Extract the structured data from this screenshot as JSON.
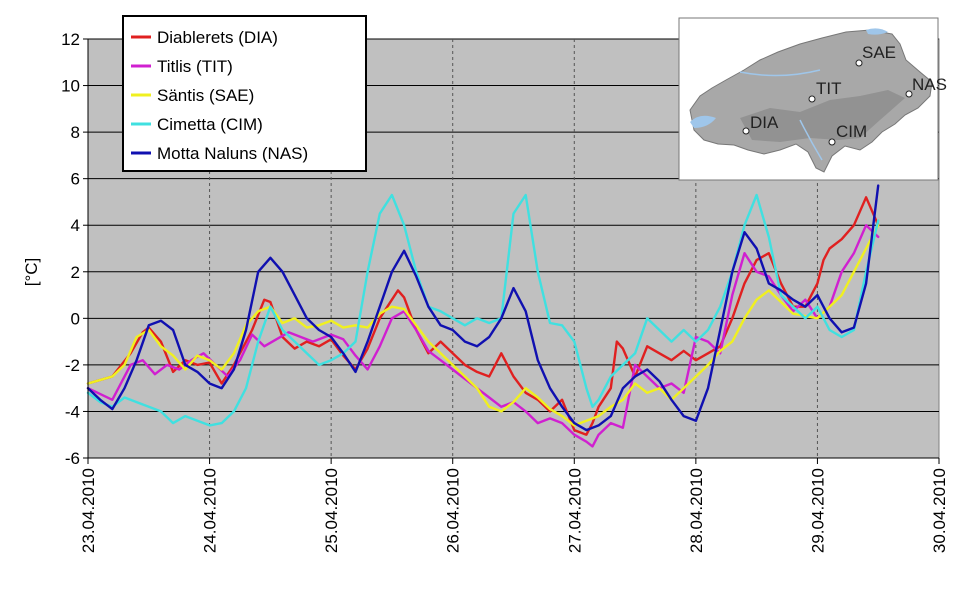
{
  "chart_data": {
    "type": "line",
    "ylabel": "[°C]",
    "xlabel": "",
    "ylim": [
      -6,
      12
    ],
    "xlim": [
      0,
      7
    ],
    "grid": true,
    "legend_placement": "top-left",
    "plot_background": "#c0c0c0",
    "y_ticks": [
      "12",
      "10",
      "8",
      "6",
      "4",
      "2",
      "0",
      "-2",
      "-4",
      "-6"
    ],
    "x_tick_labels": [
      "23.04.2010",
      "24.04.2010",
      "25.04.2010",
      "26.04.2010",
      "27.04.2010",
      "28.04.2010",
      "29.04.2010",
      "30.04.2010"
    ],
    "series": [
      {
        "name": "Diablerets (DIA)",
        "color": "#e02020",
        "x": [
          0,
          0.2,
          0.35,
          0.45,
          0.5,
          0.6,
          0.7,
          0.8,
          0.9,
          1.0,
          1.1,
          1.2,
          1.35,
          1.45,
          1.5,
          1.6,
          1.7,
          1.8,
          1.9,
          2.0,
          2.1,
          2.2,
          2.3,
          2.4,
          2.5,
          2.55,
          2.6,
          2.7,
          2.8,
          2.9,
          3.0,
          3.1,
          3.2,
          3.3,
          3.4,
          3.5,
          3.6,
          3.7,
          3.8,
          3.9,
          4.0,
          4.1,
          4.15,
          4.2,
          4.3,
          4.35,
          4.4,
          4.5,
          4.6,
          4.7,
          4.8,
          4.9,
          5.0,
          5.1,
          5.2,
          5.3,
          5.4,
          5.5,
          5.6,
          5.7,
          5.8,
          5.9,
          6.0,
          6.05,
          6.1,
          6.2,
          6.3,
          6.4,
          6.5
        ],
        "y": [
          -2.8,
          -2.5,
          -1.5,
          -0.6,
          -0.4,
          -1.0,
          -2.3,
          -1.8,
          -2.0,
          -1.9,
          -2.8,
          -2.0,
          -0.5,
          0.8,
          0.7,
          -0.8,
          -1.3,
          -1.0,
          -1.2,
          -0.9,
          -1.6,
          -2.2,
          -1.3,
          0.0,
          0.8,
          1.2,
          0.9,
          -0.5,
          -1.5,
          -1.0,
          -1.5,
          -2.0,
          -2.3,
          -2.5,
          -1.5,
          -2.5,
          -3.2,
          -3.5,
          -4.0,
          -3.5,
          -4.8,
          -5.0,
          -4.5,
          -3.8,
          -3.0,
          -1.0,
          -1.3,
          -2.5,
          -1.2,
          -1.5,
          -1.8,
          -1.4,
          -1.8,
          -1.5,
          -1.2,
          0.0,
          1.5,
          2.5,
          2.8,
          1.5,
          0.5,
          0.5,
          1.5,
          2.5,
          3.0,
          3.4,
          4.0,
          5.2,
          4.0
        ]
      },
      {
        "name": "Titlis (TIT)",
        "color": "#d020d0",
        "x": [
          0,
          0.2,
          0.35,
          0.45,
          0.55,
          0.65,
          0.75,
          0.85,
          0.95,
          1.05,
          1.15,
          1.25,
          1.35,
          1.45,
          1.55,
          1.65,
          1.75,
          1.85,
          2.0,
          2.1,
          2.2,
          2.3,
          2.4,
          2.5,
          2.6,
          2.7,
          2.8,
          2.9,
          3.0,
          3.1,
          3.2,
          3.3,
          3.4,
          3.5,
          3.6,
          3.7,
          3.8,
          3.9,
          4.0,
          4.1,
          4.15,
          4.2,
          4.3,
          4.4,
          4.5,
          4.6,
          4.7,
          4.8,
          4.9,
          5.0,
          5.1,
          5.2,
          5.3,
          5.4,
          5.5,
          5.6,
          5.7,
          5.8,
          5.9,
          6.0,
          6.1,
          6.2,
          6.3,
          6.4,
          6.5
        ],
        "y": [
          -3.0,
          -3.5,
          -2.0,
          -1.8,
          -2.4,
          -2.0,
          -2.2,
          -1.8,
          -1.5,
          -2.0,
          -2.5,
          -1.8,
          -0.7,
          -1.2,
          -0.9,
          -0.6,
          -0.8,
          -1.0,
          -0.7,
          -0.9,
          -1.6,
          -2.2,
          -1.2,
          0.0,
          0.3,
          -0.5,
          -1.4,
          -1.8,
          -2.2,
          -2.6,
          -3.0,
          -3.4,
          -3.8,
          -3.6,
          -4.0,
          -4.5,
          -4.3,
          -4.5,
          -5.0,
          -5.3,
          -5.5,
          -5.0,
          -4.5,
          -4.7,
          -2.0,
          -2.5,
          -3.0,
          -2.8,
          -3.2,
          -0.8,
          -1.0,
          -1.5,
          1.0,
          2.8,
          2.0,
          1.8,
          1.0,
          0.3,
          0.8,
          0.0,
          0.5,
          2.0,
          2.8,
          4.0,
          3.5
        ]
      },
      {
        "name": "Säntis (SAE)",
        "color": "#f0f020",
        "x": [
          0,
          0.2,
          0.3,
          0.4,
          0.5,
          0.6,
          0.7,
          0.8,
          0.9,
          1.0,
          1.1,
          1.2,
          1.3,
          1.4,
          1.5,
          1.6,
          1.7,
          1.8,
          1.9,
          2.0,
          2.1,
          2.2,
          2.3,
          2.4,
          2.5,
          2.6,
          2.7,
          2.8,
          2.9,
          3.0,
          3.1,
          3.2,
          3.3,
          3.4,
          3.5,
          3.6,
          3.7,
          3.8,
          3.9,
          4.0,
          4.1,
          4.2,
          4.3,
          4.4,
          4.5,
          4.6,
          4.7,
          4.8,
          4.9,
          5.0,
          5.1,
          5.2,
          5.3,
          5.4,
          5.5,
          5.6,
          5.7,
          5.8,
          5.9,
          6.0,
          6.1,
          6.2,
          6.3,
          6.4,
          6.5
        ],
        "y": [
          -2.8,
          -2.5,
          -2.0,
          -0.8,
          -0.5,
          -1.2,
          -1.6,
          -2.2,
          -1.6,
          -1.8,
          -2.2,
          -1.5,
          -0.3,
          0.3,
          0.5,
          -0.2,
          0.0,
          -0.4,
          -0.3,
          -0.1,
          -0.4,
          -0.3,
          -0.4,
          0.2,
          0.5,
          0.4,
          -0.3,
          -1.0,
          -1.5,
          -2.0,
          -2.5,
          -3.0,
          -3.8,
          -4.0,
          -3.6,
          -3.0,
          -3.4,
          -3.9,
          -4.2,
          -4.6,
          -4.4,
          -4.2,
          -3.8,
          -3.5,
          -2.8,
          -3.2,
          -3.0,
          -3.5,
          -3.0,
          -2.5,
          -2.0,
          -1.4,
          -1.0,
          0.0,
          0.8,
          1.2,
          0.7,
          0.2,
          0.1,
          0.0,
          0.5,
          1.0,
          2.0,
          3.0,
          4.0
        ]
      },
      {
        "name": "Cimetta (CIM)",
        "color": "#40e0e0",
        "x": [
          0,
          0.1,
          0.2,
          0.3,
          0.4,
          0.5,
          0.6,
          0.7,
          0.8,
          0.9,
          1.0,
          1.1,
          1.2,
          1.3,
          1.4,
          1.5,
          1.6,
          1.7,
          1.8,
          1.9,
          2.0,
          2.1,
          2.2,
          2.3,
          2.4,
          2.5,
          2.6,
          2.7,
          2.8,
          2.9,
          3.0,
          3.1,
          3.2,
          3.3,
          3.4,
          3.5,
          3.6,
          3.7,
          3.8,
          3.9,
          4.0,
          4.1,
          4.15,
          4.2,
          4.3,
          4.4,
          4.5,
          4.6,
          4.7,
          4.8,
          4.9,
          5.0,
          5.1,
          5.2,
          5.3,
          5.4,
          5.5,
          5.6,
          5.7,
          5.8,
          5.9,
          6.0,
          6.1,
          6.2,
          6.3,
          6.4,
          6.5
        ],
        "y": [
          -3.2,
          -3.6,
          -3.8,
          -3.4,
          -3.6,
          -3.8,
          -4.0,
          -4.5,
          -4.2,
          -4.4,
          -4.6,
          -4.5,
          -4.0,
          -3.0,
          -1.0,
          0.5,
          -0.5,
          -1.0,
          -1.5,
          -2.0,
          -1.8,
          -1.5,
          -1.0,
          2.0,
          4.5,
          5.3,
          4.0,
          2.0,
          0.5,
          0.3,
          0.0,
          -0.3,
          0.0,
          -0.2,
          0.0,
          4.5,
          5.3,
          2.0,
          -0.2,
          -0.3,
          -1.0,
          -3.0,
          -3.8,
          -3.5,
          -2.5,
          -2.0,
          -1.5,
          0.0,
          -0.5,
          -1.0,
          -0.5,
          -1.0,
          -0.5,
          0.5,
          2.0,
          4.0,
          5.3,
          3.5,
          1.0,
          0.5,
          0.0,
          0.5,
          -0.5,
          -0.8,
          -0.5,
          2.0,
          4.2
        ]
      },
      {
        "name": "Motta Naluns (NAS)",
        "color": "#1010b0",
        "x": [
          0,
          0.1,
          0.2,
          0.3,
          0.4,
          0.5,
          0.6,
          0.7,
          0.8,
          0.9,
          1.0,
          1.1,
          1.2,
          1.3,
          1.4,
          1.5,
          1.6,
          1.7,
          1.8,
          1.9,
          2.0,
          2.1,
          2.2,
          2.3,
          2.4,
          2.5,
          2.6,
          2.7,
          2.8,
          2.9,
          3.0,
          3.1,
          3.2,
          3.3,
          3.4,
          3.5,
          3.6,
          3.7,
          3.8,
          3.9,
          4.0,
          4.1,
          4.2,
          4.3,
          4.4,
          4.5,
          4.6,
          4.7,
          4.8,
          4.9,
          5.0,
          5.1,
          5.2,
          5.3,
          5.4,
          5.5,
          5.6,
          5.7,
          5.8,
          5.9,
          6.0,
          6.1,
          6.2,
          6.3,
          6.4,
          6.5
        ],
        "y": [
          -3.0,
          -3.5,
          -3.9,
          -3.0,
          -1.8,
          -0.3,
          -0.1,
          -0.5,
          -2.0,
          -2.3,
          -2.8,
          -3.0,
          -2.2,
          -0.5,
          2.0,
          2.6,
          2.0,
          1.0,
          0.0,
          -0.5,
          -0.8,
          -1.5,
          -2.3,
          -1.0,
          0.5,
          2.0,
          2.9,
          1.8,
          0.5,
          -0.3,
          -0.5,
          -1.0,
          -1.2,
          -0.8,
          0.0,
          1.3,
          0.3,
          -1.8,
          -3.0,
          -3.8,
          -4.5,
          -4.8,
          -4.6,
          -4.2,
          -3.0,
          -2.5,
          -2.2,
          -2.7,
          -3.5,
          -4.2,
          -4.4,
          -3.0,
          -0.5,
          2.0,
          3.7,
          3.0,
          1.5,
          1.2,
          0.8,
          0.5,
          1.0,
          0.0,
          -0.6,
          -0.4,
          1.5,
          5.7
        ]
      }
    ]
  },
  "map": {
    "labels": [
      "SAE",
      "TIT",
      "NAS",
      "DIA",
      "CIM"
    ]
  }
}
